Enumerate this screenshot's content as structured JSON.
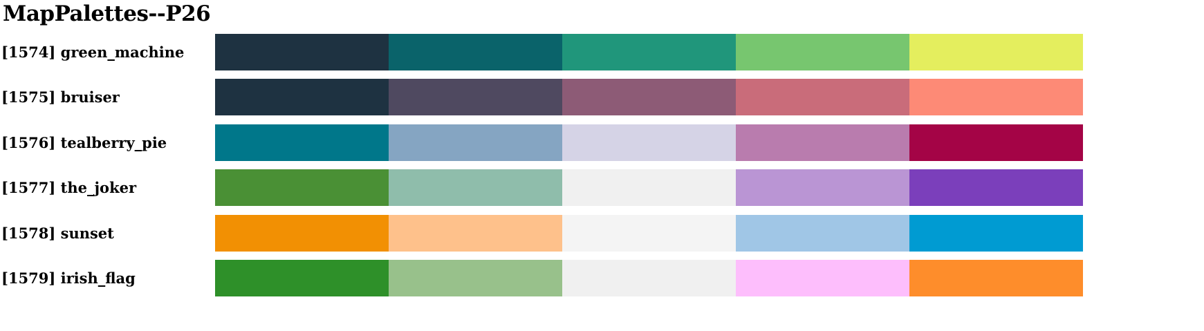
{
  "title": "MapPalettes--P26",
  "palettes": [
    {
      "label": "[1574] green_machine",
      "colors": [
        "#1e3241",
        "#0a636a",
        "#20967b",
        "#77c66f",
        "#e4ee5e"
      ]
    },
    {
      "label": "[1575] bruiser",
      "colors": [
        "#1e3241",
        "#4f4960",
        "#8d5b76",
        "#c96c7a",
        "#fd8a76"
      ]
    },
    {
      "label": "[1576] tealberry_pie",
      "colors": [
        "#00778a",
        "#85a5c2",
        "#d5d3e6",
        "#b97cae",
        "#a40446"
      ]
    },
    {
      "label": "[1577] the_joker",
      "colors": [
        "#4a9035",
        "#8fbdab",
        "#f0f0f0",
        "#ba95d4",
        "#7b3fbb"
      ]
    },
    {
      "label": "[1578] sunset",
      "colors": [
        "#f29003",
        "#fec18b",
        "#f4f4f4",
        "#a0c6e6",
        "#009bd2"
      ]
    },
    {
      "label": "[1579] irish_flag",
      "colors": [
        "#2e9029",
        "#98c18b",
        "#f0f0f0",
        "#fdbefc",
        "#fe8d2b"
      ]
    }
  ]
}
